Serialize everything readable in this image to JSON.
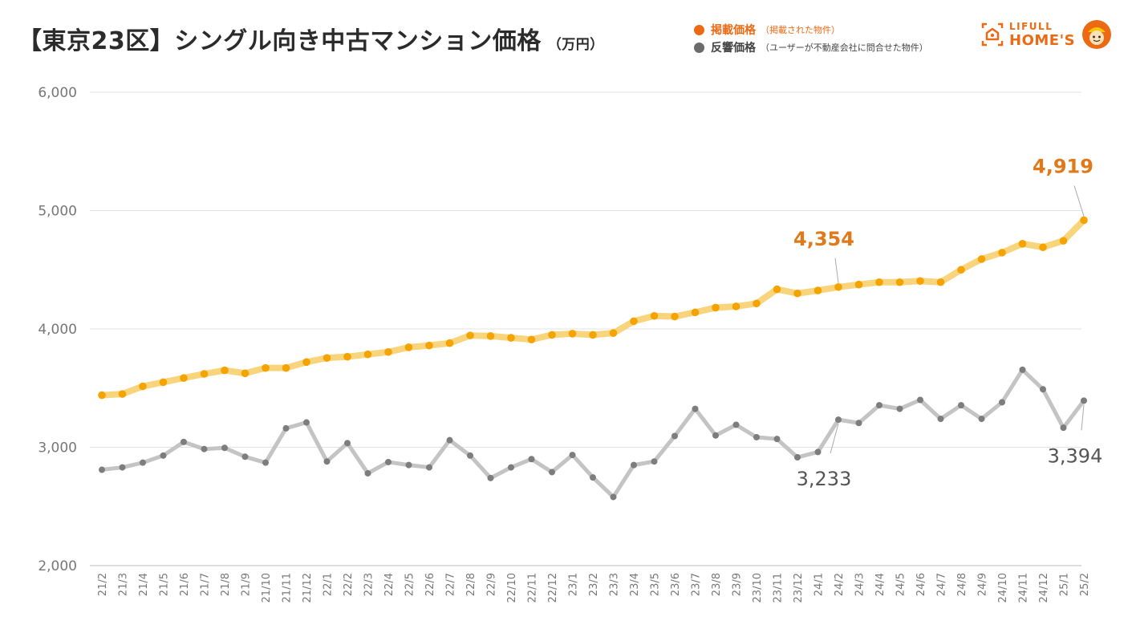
{
  "title": "【東京23区】シングル向き中古マンション価格",
  "title_unit": "（万円）",
  "legend": [
    {
      "label": "掲載価格",
      "note": "（掲載された物件）",
      "color": "#ec6a14",
      "text_color": "#ec6a14"
    },
    {
      "label": "反響価格",
      "note": "（ユーザーが不動産会社に問合せた物件）",
      "color": "#6b6b6b",
      "text_color": "#444444"
    }
  ],
  "logo": {
    "line1": "LIFULL",
    "line2": "HOME'S",
    "icon": "house-logo-icon",
    "mascot": "mascot-icon"
  },
  "colors": {
    "listed_line": "#f8d57c",
    "listed_dot": "#f4a300",
    "response_line": "#c4c4c4",
    "response_dot": "#7d7d7d",
    "listed_label": "#e0791a",
    "response_label": "#555555",
    "grid": "#e3e3e3",
    "tick": "#777777"
  },
  "chart_data": {
    "type": "line",
    "title": "【東京23区】シングル向き中古マンション価格",
    "xlabel": "",
    "ylabel": "（万円）",
    "ylim": [
      2000,
      6000
    ],
    "yticks": [
      2000,
      3000,
      4000,
      5000,
      6000
    ],
    "ytick_labels": [
      "2,000",
      "3,000",
      "4,000",
      "5,000",
      "6,000"
    ],
    "grid": true,
    "legend_position": "top-right",
    "categories": [
      "21/2",
      "21/3",
      "21/4",
      "21/5",
      "21/6",
      "21/7",
      "21/8",
      "21/9",
      "21/10",
      "21/11",
      "21/12",
      "22/1",
      "22/2",
      "22/3",
      "22/4",
      "22/5",
      "22/6",
      "22/7",
      "22/8",
      "22/9",
      "22/10",
      "22/11",
      "22/12",
      "23/1",
      "23/2",
      "23/3",
      "23/4",
      "23/5",
      "23/6",
      "23/7",
      "23/8",
      "23/9",
      "23/10",
      "23/11",
      "23/12",
      "24/1",
      "24/2",
      "24/3",
      "24/4",
      "24/5",
      "24/6",
      "24/7",
      "24/8",
      "24/9",
      "24/10",
      "24/11",
      "24/12",
      "25/1",
      "25/2"
    ],
    "series": [
      {
        "name": "掲載価格",
        "values": [
          3440,
          3450,
          3515,
          3550,
          3585,
          3620,
          3650,
          3625,
          3670,
          3670,
          3720,
          3755,
          3765,
          3785,
          3805,
          3845,
          3860,
          3880,
          3945,
          3940,
          3925,
          3910,
          3950,
          3960,
          3950,
          3965,
          4065,
          4110,
          4105,
          4140,
          4180,
          4190,
          4215,
          4335,
          4300,
          4325,
          4354,
          4375,
          4395,
          4395,
          4405,
          4395,
          4500,
          4590,
          4645,
          4720,
          4690,
          4745,
          4919
        ]
      },
      {
        "name": "反響価格",
        "values": [
          2810,
          2830,
          2870,
          2930,
          3045,
          2985,
          2995,
          2920,
          2870,
          3160,
          3210,
          2880,
          3035,
          2780,
          2875,
          2850,
          2830,
          3060,
          2930,
          2740,
          2830,
          2900,
          2790,
          2935,
          2745,
          2580,
          2850,
          2880,
          3095,
          3325,
          3100,
          3190,
          3085,
          3070,
          2915,
          2960,
          3233,
          3205,
          3355,
          3325,
          3400,
          3240,
          3355,
          3240,
          3380,
          3655,
          3490,
          3165,
          3394
        ]
      }
    ],
    "annotations": [
      {
        "series": 0,
        "category": "24/2",
        "text": "4,354"
      },
      {
        "series": 0,
        "category": "25/2",
        "text": "4,919"
      },
      {
        "series": 1,
        "category": "24/2",
        "text": "3,233"
      },
      {
        "series": 1,
        "category": "25/2",
        "text": "3,394"
      }
    ]
  }
}
